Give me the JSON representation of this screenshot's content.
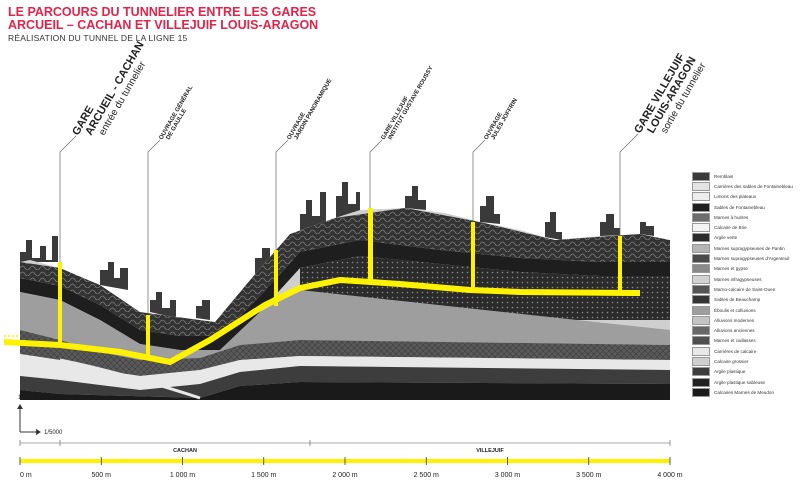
{
  "header": {
    "title_line1": "LE PARCOURS DU TUNNELIER ENTRE LES GARES",
    "title_line2": "ARCUEIL – CACHAN ET VILLEJUIF LOUIS-ARAGON",
    "subtitle": "RÉALISATION DU TUNNEL DE LA LIGNE 15"
  },
  "stations": {
    "start": {
      "l1": "GARE",
      "l2": "ARCUEIL - CACHAN",
      "l3": "entrée du tunnelier"
    },
    "end": {
      "l1": "GARE VILLEJUIF",
      "l2": "LOUIS-ARAGON",
      "l3": "sortie du tunnelier"
    }
  },
  "ouvrages": [
    {
      "l1": "OUVRAGE GÉNÉRAL",
      "l2": "DE GAULLE"
    },
    {
      "l1": "OUVRAGE",
      "l2": "JARDIN PANORAMIQUE"
    },
    {
      "l1": "GARE VILLEJUIF",
      "l2": "INSTITUT GUSTAVE ROUSSY"
    },
    {
      "l1": "OUVRAGE",
      "l2": "JULES JOFFRIN"
    }
  ],
  "scales": {
    "vertical": "1/500",
    "horizontal": "1/5000"
  },
  "communes": [
    "CACHAN",
    "VILLEJUIF"
  ],
  "distance_ticks": [
    "0 m",
    "500 m",
    "1 000 m",
    "1 500 m",
    "2 000 m",
    "2 500 m",
    "3 000 m",
    "3 500 m",
    "4 000 m"
  ],
  "legend": [
    {
      "label": "Remblais",
      "color": "#3a3a3a"
    },
    {
      "label": "Carrières des sables de Fontainebleau",
      "color": "#e3e3e3"
    },
    {
      "label": "Limons des plateaux",
      "color": "#ededed"
    },
    {
      "label": "Sables de Fontainebleau",
      "color": "#1e1e1e"
    },
    {
      "label": "Marnes à huitres",
      "color": "#6d6d6d"
    },
    {
      "label": "Calcaire de Brie",
      "color": "#f4f4f4"
    },
    {
      "label": "Argile verte",
      "color": "#2a2a2a"
    },
    {
      "label": "Marnes supragypseuses de Pantin",
      "color": "#b5b5b5"
    },
    {
      "label": "Marnes supragypseuses d'Argenteuil",
      "color": "#4a4a4a"
    },
    {
      "label": "Marnes et gypse",
      "color": "#8a8a8a"
    },
    {
      "label": "Marnes infragypseuses",
      "color": "#d2d2d2"
    },
    {
      "label": "Marno-calcaire de Saint-Ouen",
      "color": "#555555"
    },
    {
      "label": "Sables de Beauchamp",
      "color": "#353535"
    },
    {
      "label": "Éboulis et colluvions",
      "color": "#9e9e9e"
    },
    {
      "label": "Alluvions modernes",
      "color": "#c4c4c4"
    },
    {
      "label": "Alluvions anciennes",
      "color": "#686868"
    },
    {
      "label": "Marnes et caillasses",
      "color": "#505050"
    },
    {
      "label": "Carrières de calcaire",
      "color": "#e8e8e8"
    },
    {
      "label": "Calcaire grossier",
      "color": "#cfcfcf"
    },
    {
      "label": "Argile plastique",
      "color": "#3d3d3d"
    },
    {
      "label": "Argile plastique sableuse",
      "color": "#222222"
    },
    {
      "label": "Calcaires Marnes de Meudon",
      "color": "#1a1a1a"
    }
  ],
  "colors": {
    "title": "#e5234a",
    "tunnel": "#fff200",
    "ground": "#2b2b2b"
  }
}
